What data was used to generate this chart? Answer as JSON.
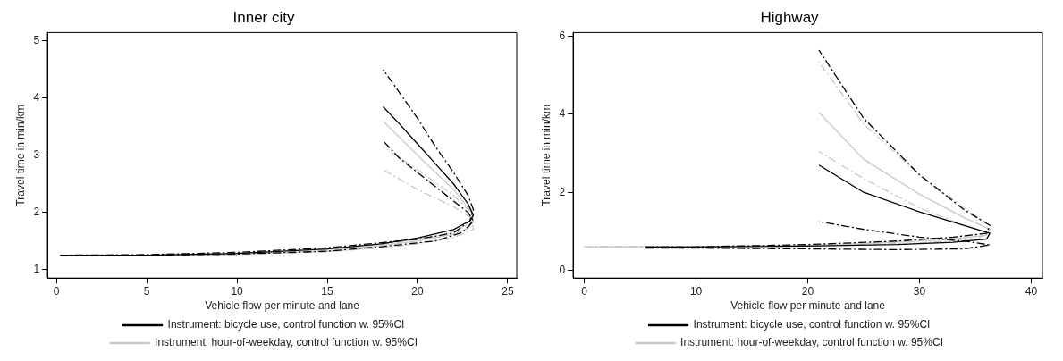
{
  "chart_data": [
    {
      "type": "line",
      "title": "Inner city",
      "xlabel": "Vehicle flow per minute and lane",
      "ylabel": "Travel time in min/km",
      "xlim": [
        -0.5,
        25.5
      ],
      "xticks": [
        0,
        5,
        10,
        15,
        20,
        25
      ],
      "ylim": [
        0.85,
        5.15
      ],
      "yticks": [
        1,
        2,
        3,
        4,
        5
      ],
      "grid": false,
      "legend": "bottom",
      "marker": "none",
      "series": [
        {
          "name": "Instrument: bicycle use, control function w. 95%CI",
          "color": "#000000",
          "line_style": "solid",
          "x": [
            0.2,
            5,
            10,
            15,
            18,
            20,
            22,
            22.9,
            23.1,
            22.8,
            22,
            21,
            20,
            19,
            18.1
          ],
          "values": [
            1.25,
            1.25,
            1.28,
            1.36,
            1.45,
            1.55,
            1.7,
            1.85,
            1.95,
            2.15,
            2.5,
            2.85,
            3.2,
            3.55,
            3.85
          ]
        },
        {
          "color": "#000000",
          "line_style": "dashed",
          "x": [
            0.2,
            5,
            10,
            15,
            18,
            20,
            22,
            22.9,
            23.1,
            22.8,
            22,
            21,
            20,
            19,
            18.1
          ],
          "values": [
            1.25,
            1.26,
            1.3,
            1.38,
            1.47,
            1.53,
            1.64,
            1.85,
            2.05,
            2.3,
            2.7,
            3.15,
            3.65,
            4.1,
            4.5
          ]
        },
        {
          "color": "#000000",
          "line_style": "dashed",
          "x": [
            0.2,
            5,
            10,
            15,
            18,
            21,
            22.5,
            23.1,
            22.8,
            22,
            21,
            20,
            19,
            18.1
          ],
          "values": [
            1.25,
            1.25,
            1.27,
            1.32,
            1.4,
            1.5,
            1.65,
            1.85,
            2.0,
            2.2,
            2.45,
            2.7,
            2.95,
            3.25
          ]
        },
        {
          "name": "Instrument: hour-of-weekday, control function w. 95%CI",
          "color": "#c8c8c8",
          "line_style": "solid",
          "x": [
            2,
            5,
            10,
            15,
            18,
            20,
            22,
            22.8,
            23.1,
            23,
            22,
            20,
            18.1
          ],
          "values": [
            1.24,
            1.24,
            1.27,
            1.33,
            1.42,
            1.5,
            1.62,
            1.72,
            1.85,
            2.0,
            2.4,
            3.0,
            3.6
          ]
        },
        {
          "color": "#c8c8c8",
          "line_style": "dashed",
          "x": [
            2,
            5,
            10,
            15,
            18,
            20,
            22,
            22.9,
            23.1,
            22.8,
            22,
            20,
            18.1
          ],
          "values": [
            1.24,
            1.25,
            1.28,
            1.35,
            1.44,
            1.52,
            1.66,
            1.8,
            1.92,
            2.05,
            2.3,
            2.75,
            3.15
          ]
        },
        {
          "color": "#c8c8c8",
          "line_style": "dashed",
          "x": [
            2,
            5,
            10,
            15,
            18,
            20,
            22,
            23.1,
            23,
            22,
            20,
            18.1
          ],
          "values": [
            1.24,
            1.24,
            1.26,
            1.31,
            1.38,
            1.45,
            1.56,
            1.7,
            1.9,
            2.1,
            2.4,
            2.75
          ]
        }
      ]
    },
    {
      "type": "line",
      "title": "Highway",
      "xlabel": "Vehicle flow per minute and lane",
      "ylabel": "Travel time in min/km",
      "xlim": [
        -1,
        41
      ],
      "xticks": [
        0,
        10,
        20,
        30,
        40
      ],
      "ylim": [
        -0.2,
        6.1
      ],
      "yticks": [
        0,
        2,
        4,
        6
      ],
      "grid": false,
      "legend": "bottom",
      "marker": "none",
      "series": [
        {
          "name": "Instrument: bicycle use, control function w. 95%CI",
          "color": "#000000",
          "line_style": "solid",
          "x": [
            5.5,
            10,
            20,
            28,
            33,
            36,
            36.3,
            34,
            30,
            25,
            21
          ],
          "values": [
            0.6,
            0.6,
            0.62,
            0.66,
            0.72,
            0.8,
            0.95,
            1.15,
            1.5,
            2.0,
            2.7
          ]
        },
        {
          "color": "#000000",
          "line_style": "dashed",
          "x": [
            5.5,
            10,
            20,
            28,
            33,
            36,
            36.3,
            34,
            30,
            25,
            21
          ],
          "values": [
            0.6,
            0.6,
            0.66,
            0.75,
            0.85,
            0.95,
            1.15,
            1.55,
            2.45,
            3.9,
            5.65
          ]
        },
        {
          "color": "#000000",
          "line_style": "dashed",
          "x": [
            5.5,
            10,
            20,
            28,
            34,
            36.3,
            34,
            30,
            25,
            21
          ],
          "values": [
            0.57,
            0.57,
            0.55,
            0.53,
            0.55,
            0.65,
            0.75,
            0.85,
            1.05,
            1.25
          ]
        },
        {
          "name": "Instrument: hour-of-weekday, control function w. 95%CI",
          "color": "#c8c8c8",
          "line_style": "solid",
          "x": [
            0,
            10,
            20,
            28,
            33,
            36,
            36.3,
            34,
            30,
            25,
            21
          ],
          "values": [
            0.6,
            0.61,
            0.64,
            0.72,
            0.8,
            0.9,
            1.05,
            1.35,
            1.95,
            2.85,
            4.05
          ]
        },
        {
          "color": "#c8c8c8",
          "line_style": "dashed",
          "x": [
            0,
            15,
            25,
            33,
            36,
            36.3,
            34,
            30,
            25,
            21
          ],
          "values": [
            0.6,
            0.62,
            0.7,
            0.83,
            0.95,
            1.15,
            1.6,
            2.45,
            3.75,
            5.35
          ]
        },
        {
          "color": "#c8c8c8",
          "line_style": "dashed",
          "x": [
            0,
            20,
            30,
            35,
            36.3,
            34,
            30,
            25,
            21
          ],
          "values": [
            0.6,
            0.63,
            0.7,
            0.8,
            0.95,
            1.15,
            1.6,
            2.35,
            3.05
          ]
        }
      ]
    }
  ]
}
